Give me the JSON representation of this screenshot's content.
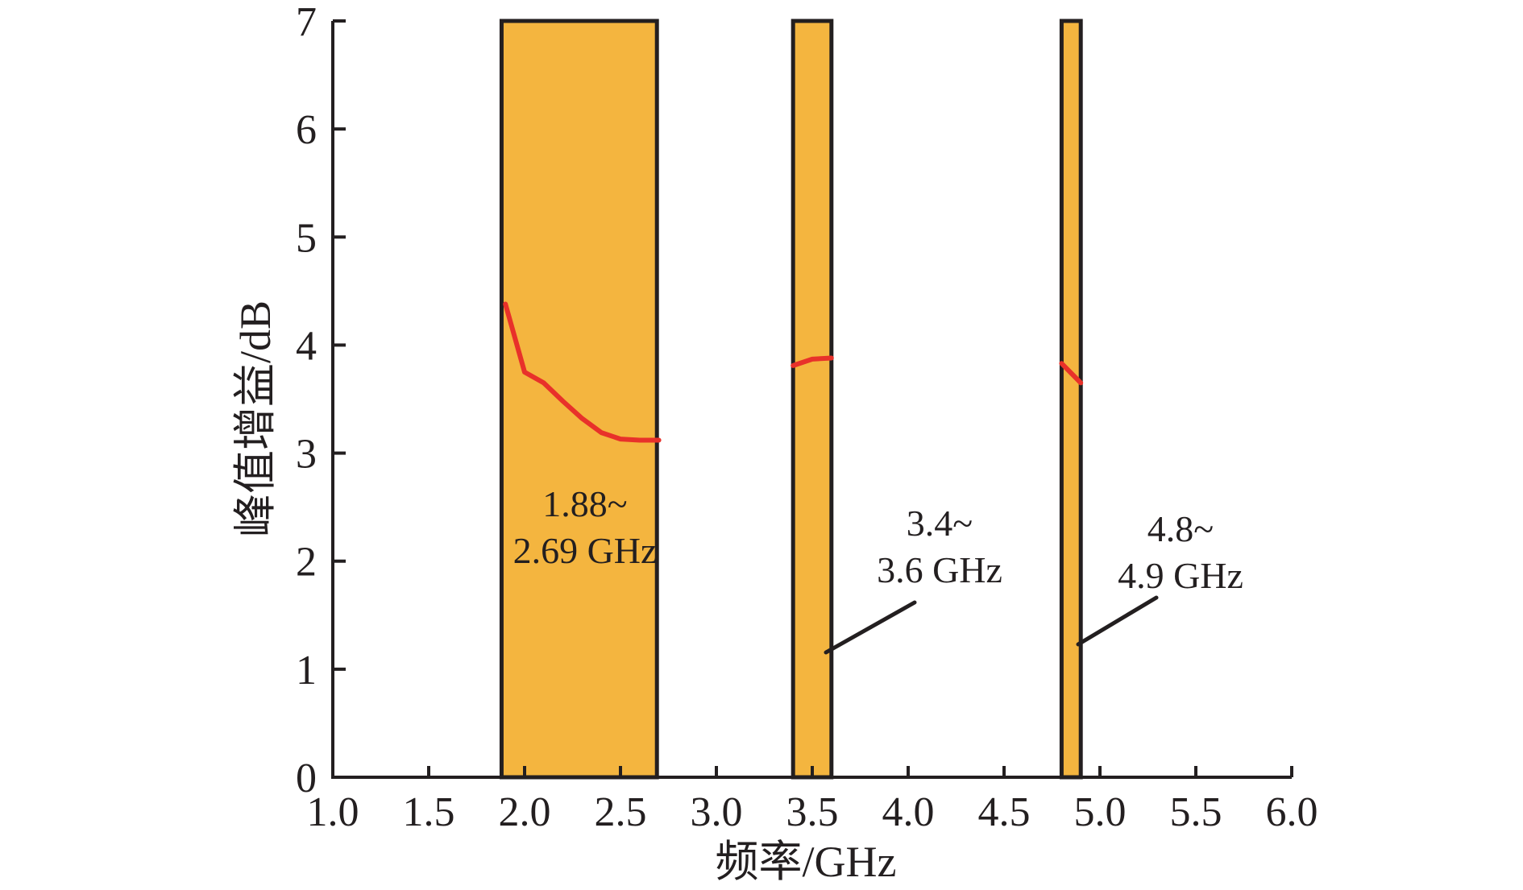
{
  "chart_data": {
    "type": "line",
    "xlabel": "频率/GHz",
    "ylabel": "峰值增益/dB",
    "xlim": [
      1.0,
      6.0
    ],
    "ylim": [
      0,
      7
    ],
    "x_ticks": [
      "1.0",
      "1.5",
      "2.0",
      "2.5",
      "3.0",
      "3.5",
      "4.0",
      "4.5",
      "5.0",
      "5.5",
      "6.0"
    ],
    "y_ticks": [
      "0",
      "1",
      "2",
      "3",
      "4",
      "5",
      "6",
      "7"
    ],
    "grid": false,
    "colors": {
      "band_fill": "#f4b53f",
      "band_stroke": "#231f20",
      "curve": "#e8312a",
      "axis": "#231f20"
    },
    "bands": [
      {
        "start": 1.88,
        "end": 2.69,
        "label_line1": "1.88~",
        "label_line2": "2.69 GHz"
      },
      {
        "start": 3.4,
        "end": 3.6,
        "label_line1": "3.4~",
        "label_line2": "3.6 GHz"
      },
      {
        "start": 4.8,
        "end": 4.9,
        "label_line1": "4.8~",
        "label_line2": "4.9 GHz"
      }
    ],
    "series": [
      {
        "x": [
          1.9,
          2.0,
          2.1,
          2.2,
          2.3,
          2.4,
          2.5,
          2.6,
          2.7
        ],
        "y": [
          4.38,
          3.75,
          3.65,
          3.48,
          3.32,
          3.19,
          3.13,
          3.12,
          3.12
        ]
      },
      {
        "x": [
          3.4,
          3.5,
          3.6
        ],
        "y": [
          3.81,
          3.87,
          3.88
        ]
      },
      {
        "x": [
          4.8,
          4.9
        ],
        "y": [
          3.83,
          3.65
        ]
      }
    ]
  }
}
